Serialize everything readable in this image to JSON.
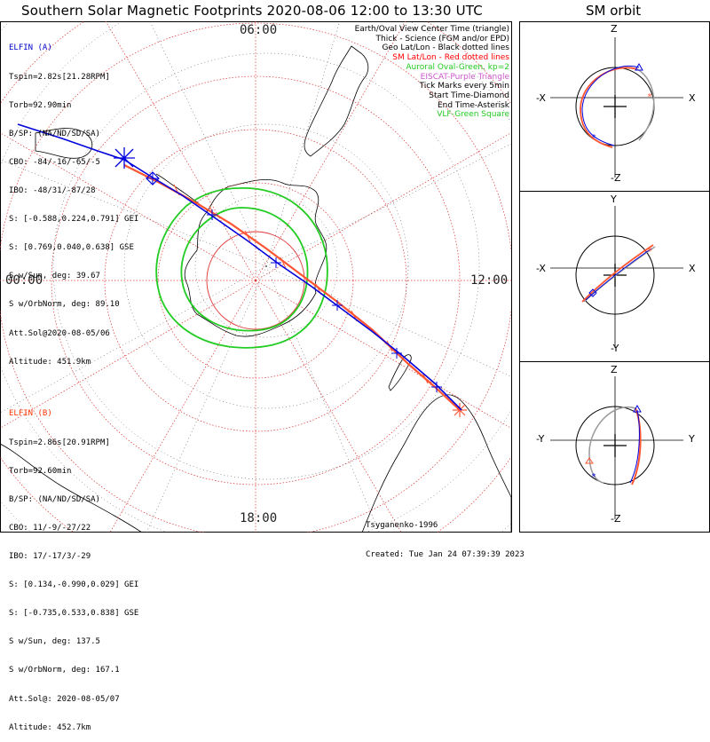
{
  "title": "Southern Solar Magnetic Footprints 2020-08-06 12:00 to 13:30 UTC",
  "sm_title": "SM orbit",
  "time_labels": {
    "top": "06:00",
    "left": "00:00",
    "right": "12:00",
    "bottom": "18:00"
  },
  "legend": [
    {
      "text": "Earth/Oval View Center Time (triangle)",
      "color": "#000000"
    },
    {
      "text": "Thick - Science (FGM and/or EPD)",
      "color": "#000000"
    },
    {
      "text": "Geo Lat/Lon - Black dotted lines",
      "color": "#000000"
    },
    {
      "text": "SM Lat/Lon - Red dotted lines",
      "color": "#ff0000"
    },
    {
      "text": "Auroral Oval-Green, kp=2",
      "color": "#22cc22"
    },
    {
      "text": "EISCAT-Purple Triangle",
      "color": "#cc55cc"
    },
    {
      "text": "Tick Marks every 5min",
      "color": "#000000"
    },
    {
      "text": "Start Time-Diamond",
      "color": "#000000"
    },
    {
      "text": "End Time-Asterisk",
      "color": "#000000"
    },
    {
      "text": "VLF-Green Square",
      "color": "#22cc22"
    }
  ],
  "elfin_a": {
    "name": "ELFIN (A)",
    "lines": [
      "Tspin=2.82s[21.28RPM]",
      "Torb=92.90min",
      "B/SP: (NA/ND/SD/SA)",
      "CBO: -84/-16/-65/-5",
      "IBO: -48/31/-87/28",
      "S: [-0.588,0.224,0.791] GEI",
      "S: [0.769,0.040,0.638] GSE",
      "S w/Sun, deg: 39.67",
      "S w/OrbNorm, deg: 89.10",
      "Att.Sol@2020-08-05/06",
      "Altitude: 451.9km"
    ]
  },
  "elfin_b": {
    "name": "ELFIN (B)",
    "lines": [
      "Tspin=2.86s[20.91RPM]",
      "Torb=92.60min",
      "B/SP: (NA/ND/SD/SA)",
      "CBO: 11/-9/-27/22",
      "IBO: 17/-17/3/-29",
      "S: [0.134,-0.990,0.029] GEI",
      "S: [-0.735,0.533,0.838] GSE",
      "S w/Sun, deg: 137.5",
      "S w/OrbNorm, deg: 167.1",
      "Att.Sol@: 2020-08-05/07",
      "Altitude: 452.7km"
    ]
  },
  "footer": {
    "model": "Tsyganenko-1996",
    "created": "Created: Tue Jan 24 07:39:39 2023"
  },
  "sm_panels": [
    {
      "top": "Z",
      "bottom": "-Z",
      "left": "-X",
      "right": "X"
    },
    {
      "top": "Y",
      "bottom": "-Y",
      "left": "-X",
      "right": "X"
    },
    {
      "top": "Z",
      "bottom": "-Z",
      "left": "-Y",
      "right": "Y"
    }
  ],
  "colors": {
    "elfin_a": "#0000dd",
    "elfin_b": "#ff5533",
    "oval": "#22cc22",
    "sm_grid": "#dd3333",
    "geo_grid": "#333333"
  },
  "icons": [
    "triangle-icon",
    "diamond-icon",
    "asterisk-icon",
    "square-icon"
  ]
}
